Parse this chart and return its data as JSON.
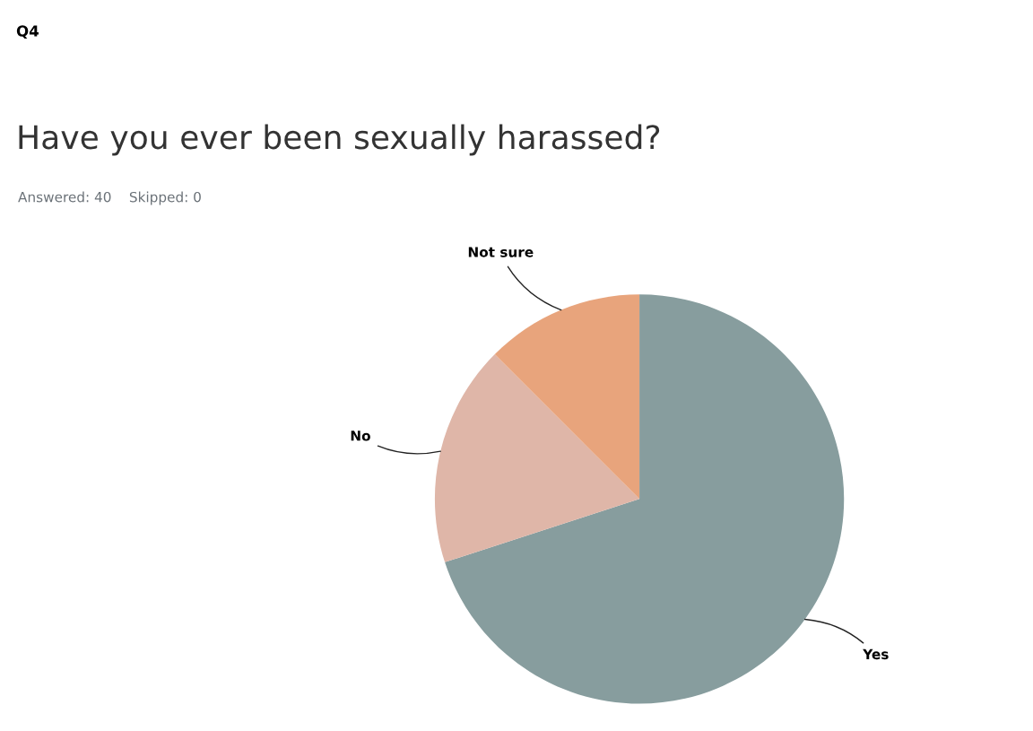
{
  "chart_data": {
    "type": "pie",
    "title": "Have you ever been sexually harassed?",
    "subtitle": "Answered: 40    Skipped: 0",
    "annotations": [
      "Q4"
    ],
    "categories": [
      "Yes",
      "No",
      "Not sure"
    ],
    "values": [
      70,
      17.5,
      12.5
    ],
    "colors": [
      "#879d9e",
      "#dfb6a8",
      "#e8a47c"
    ],
    "legend": false
  }
}
